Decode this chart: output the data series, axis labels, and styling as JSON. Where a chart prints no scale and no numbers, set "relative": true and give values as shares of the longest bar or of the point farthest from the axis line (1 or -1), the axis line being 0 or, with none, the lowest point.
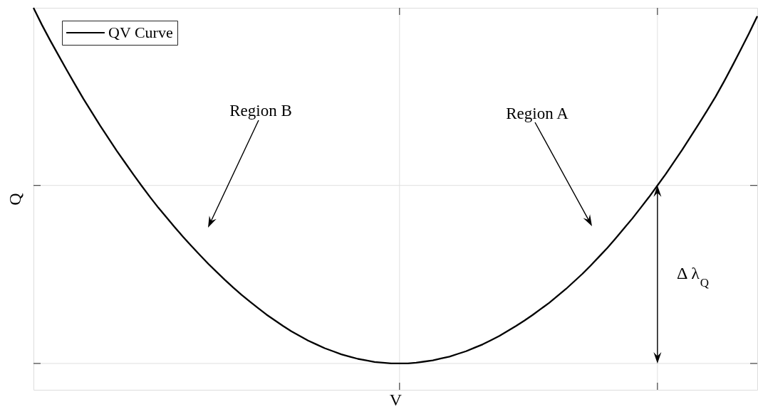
{
  "chart_data": {
    "type": "line",
    "xlabel": "V",
    "ylabel": "Q",
    "relative": true,
    "categories": [
      null,
      null,
      null,
      null,
      null,
      null,
      null,
      null,
      null,
      null,
      null,
      null,
      null,
      null,
      null,
      null,
      null,
      null,
      null,
      null,
      null,
      null,
      null,
      null,
      null,
      null,
      null,
      null,
      null,
      null,
      null,
      null,
      null,
      null,
      null,
      null,
      null,
      null,
      null,
      null,
      null,
      null,
      null,
      null,
      null,
      null,
      null,
      null,
      null,
      null,
      null,
      null,
      null,
      null,
      null,
      null,
      null,
      null,
      null,
      null,
      null,
      null,
      null,
      null,
      null,
      null,
      null,
      null,
      null,
      null,
      null,
      null,
      null,
      null,
      null,
      null,
      null,
      null,
      null,
      null,
      null,
      null,
      null,
      null,
      null,
      null,
      null,
      null
    ],
    "series": [
      {
        "name": "QV Curve",
        "color": "#000000",
        "values": [
          1.0,
          0.956,
          0.915,
          0.876,
          0.837,
          0.799,
          0.762,
          0.727,
          0.692,
          0.659,
          0.626,
          0.595,
          0.564,
          0.534,
          0.505,
          0.477,
          0.451,
          0.425,
          0.4,
          0.376,
          0.353,
          0.33,
          0.309,
          0.288,
          0.268,
          0.249,
          0.231,
          0.214,
          0.197,
          0.182,
          0.167,
          0.153,
          0.141,
          0.129,
          0.119,
          0.109,
          0.101,
          0.093,
          0.087,
          0.081,
          0.077,
          0.073,
          0.071,
          0.069,
          0.069,
          0.069,
          0.071,
          0.074,
          0.077,
          0.082,
          0.087,
          0.094,
          0.101,
          0.11,
          0.119,
          0.13,
          0.141,
          0.154,
          0.167,
          0.181,
          0.196,
          0.212,
          0.228,
          0.246,
          0.264,
          0.284,
          0.304,
          0.326,
          0.349,
          0.372,
          0.397,
          0.423,
          0.449,
          0.477,
          0.505,
          0.535,
          0.565,
          0.597,
          0.629,
          0.663,
          0.697,
          0.732,
          0.768,
          0.807,
          0.848,
          0.89,
          0.933,
          0.978
        ]
      }
    ],
    "legend": "top left",
    "line_style": "solid",
    "ref_lines": [
      {
        "axis": "y",
        "value": 0.069,
        "color": "#e0e0e0"
      },
      {
        "axis": "y",
        "value": 0.535,
        "color": "#e0e0e0"
      }
    ],
    "annotations": [
      "Region B",
      "Region A",
      "Δ λ$_{Q}$"
    ]
  }
}
